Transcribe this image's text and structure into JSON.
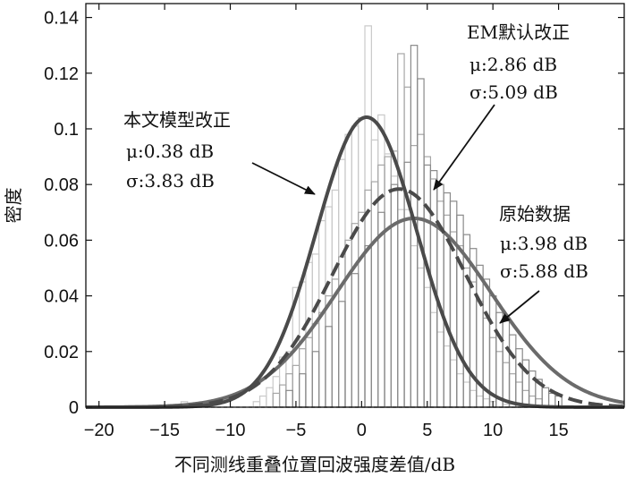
{
  "chart_data": {
    "type": "bar",
    "xlabel": "不同测线重叠位置回波强度差值/dB",
    "ylabel": "密度",
    "xlim": [
      -21,
      20
    ],
    "ylim": [
      0,
      0.145
    ],
    "xticks": [
      -20,
      -15,
      -10,
      -5,
      0,
      5,
      10,
      15
    ],
    "xtick_labels": [
      "−20",
      "−15",
      "−10",
      "−5",
      "0",
      "5",
      "10",
      "15"
    ],
    "yticks": [
      0,
      0.02,
      0.04,
      0.06,
      0.08,
      0.1,
      0.12,
      0.14
    ],
    "ytick_labels": [
      "0",
      "0.02",
      "0.04",
      "0.06",
      "0.08",
      "0.1",
      "0.12",
      "0.14"
    ],
    "grid": false,
    "series": [
      {
        "name": "原始数据",
        "kind": "normal_curve",
        "mu": 3.98,
        "sigma": 5.88,
        "color": "#6b6b6b",
        "dash": false
      },
      {
        "name": "EM默认改正",
        "kind": "normal_curve",
        "mu": 2.86,
        "sigma": 5.09,
        "color": "#4a4a4a",
        "dash": true
      },
      {
        "name": "本文模型改正",
        "kind": "normal_curve",
        "mu": 0.38,
        "sigma": 3.83,
        "color": "#4a4a4a",
        "dash": false
      }
    ],
    "histograms": [
      {
        "name": "本文模型改正-histogram",
        "color": "#c9c9c9",
        "bin_width": 0.5,
        "bins": [
          {
            "x": -13.5,
            "density": 0.002
          },
          {
            "x": -12.0,
            "density": 0.001
          },
          {
            "x": -8.0,
            "density": 0.002
          },
          {
            "x": -7.5,
            "density": 0.004
          },
          {
            "x": -7.0,
            "density": 0.007
          },
          {
            "x": -6.5,
            "density": 0.011
          },
          {
            "x": -6.0,
            "density": 0.018
          },
          {
            "x": -5.5,
            "density": 0.02
          },
          {
            "x": -5.0,
            "density": 0.043
          },
          {
            "x": -4.5,
            "density": 0.045
          },
          {
            "x": -4.0,
            "density": 0.052
          },
          {
            "x": -3.5,
            "density": 0.055
          },
          {
            "x": -3.0,
            "density": 0.067
          },
          {
            "x": -2.5,
            "density": 0.072
          },
          {
            "x": -2.0,
            "density": 0.078
          },
          {
            "x": -1.5,
            "density": 0.089
          },
          {
            "x": -1.0,
            "density": 0.098
          },
          {
            "x": -0.5,
            "density": 0.101
          },
          {
            "x": 0.0,
            "density": 0.104
          },
          {
            "x": 0.5,
            "density": 0.137
          },
          {
            "x": 1.0,
            "density": 0.096
          },
          {
            "x": 1.5,
            "density": 0.105
          },
          {
            "x": 2.0,
            "density": 0.091
          },
          {
            "x": 2.5,
            "density": 0.083
          },
          {
            "x": 3.0,
            "density": 0.071
          },
          {
            "x": 3.5,
            "density": 0.071
          },
          {
            "x": 4.0,
            "density": 0.058
          },
          {
            "x": 4.5,
            "density": 0.05
          },
          {
            "x": 5.0,
            "density": 0.043
          },
          {
            "x": 5.5,
            "density": 0.034
          },
          {
            "x": 6.0,
            "density": 0.027
          },
          {
            "x": 6.5,
            "density": 0.022
          },
          {
            "x": 7.0,
            "density": 0.017
          },
          {
            "x": 7.5,
            "density": 0.012
          },
          {
            "x": 8.0,
            "density": 0.009
          },
          {
            "x": 8.5,
            "density": 0.006
          },
          {
            "x": 9.0,
            "density": 0.004
          },
          {
            "x": 9.5,
            "density": 0.003
          },
          {
            "x": 10.0,
            "density": 0.002
          },
          {
            "x": 11.0,
            "density": 0.001
          }
        ]
      },
      {
        "name": "EM默认改正-histogram",
        "color": "#a6a6a6",
        "bin_width": 0.5,
        "bins": [
          {
            "x": -6.5,
            "density": 0.005
          },
          {
            "x": -6.0,
            "density": 0.008
          },
          {
            "x": -5.5,
            "density": 0.012
          },
          {
            "x": -5.0,
            "density": 0.015
          },
          {
            "x": -4.5,
            "density": 0.021
          },
          {
            "x": -4.0,
            "density": 0.025
          },
          {
            "x": -3.5,
            "density": 0.03
          },
          {
            "x": -3.0,
            "density": 0.034
          },
          {
            "x": -2.5,
            "density": 0.04
          },
          {
            "x": -2.0,
            "density": 0.046
          },
          {
            "x": -1.5,
            "density": 0.054
          },
          {
            "x": -1.0,
            "density": 0.06
          },
          {
            "x": -0.5,
            "density": 0.066
          },
          {
            "x": 0.0,
            "density": 0.07
          },
          {
            "x": 0.5,
            "density": 0.078
          },
          {
            "x": 1.0,
            "density": 0.081
          },
          {
            "x": 1.5,
            "density": 0.087
          },
          {
            "x": 2.0,
            "density": 0.09
          },
          {
            "x": 2.5,
            "density": 0.092
          },
          {
            "x": 3.0,
            "density": 0.127
          },
          {
            "x": 3.5,
            "density": 0.115
          },
          {
            "x": 4.0,
            "density": 0.094
          },
          {
            "x": 4.5,
            "density": 0.098
          },
          {
            "x": 5.0,
            "density": 0.09
          },
          {
            "x": 5.5,
            "density": 0.082
          },
          {
            "x": 6.0,
            "density": 0.074
          },
          {
            "x": 6.5,
            "density": 0.069
          },
          {
            "x": 7.0,
            "density": 0.063
          },
          {
            "x": 7.5,
            "density": 0.058
          },
          {
            "x": 8.0,
            "density": 0.05
          },
          {
            "x": 8.5,
            "density": 0.045
          },
          {
            "x": 9.0,
            "density": 0.038
          },
          {
            "x": 9.5,
            "density": 0.032
          },
          {
            "x": 10.0,
            "density": 0.025
          },
          {
            "x": 10.5,
            "density": 0.02
          },
          {
            "x": 11.0,
            "density": 0.016
          },
          {
            "x": 11.5,
            "density": 0.012
          },
          {
            "x": 12.0,
            "density": 0.009
          },
          {
            "x": 12.5,
            "density": 0.006
          },
          {
            "x": 13.0,
            "density": 0.004
          },
          {
            "x": 13.5,
            "density": 0.003
          }
        ]
      },
      {
        "name": "原始数据-histogram",
        "color": "#8a8a8a",
        "bin_width": 0.5,
        "bins": [
          {
            "x": -5.5,
            "density": 0.006
          },
          {
            "x": -4.5,
            "density": 0.012
          },
          {
            "x": -3.5,
            "density": 0.02
          },
          {
            "x": -2.5,
            "density": 0.029
          },
          {
            "x": -1.5,
            "density": 0.038
          },
          {
            "x": -0.5,
            "density": 0.048
          },
          {
            "x": 0.5,
            "density": 0.058
          },
          {
            "x": 1.5,
            "density": 0.07
          },
          {
            "x": 2.5,
            "density": 0.08
          },
          {
            "x": 3.5,
            "density": 0.088
          },
          {
            "x": 4.0,
            "density": 0.13
          },
          {
            "x": 4.5,
            "density": 0.118
          },
          {
            "x": 5.0,
            "density": 0.087
          },
          {
            "x": 5.5,
            "density": 0.085
          },
          {
            "x": 6.0,
            "density": 0.08
          },
          {
            "x": 6.5,
            "density": 0.077
          },
          {
            "x": 7.0,
            "density": 0.074
          },
          {
            "x": 7.5,
            "density": 0.069
          },
          {
            "x": 8.0,
            "density": 0.062
          },
          {
            "x": 8.5,
            "density": 0.057
          },
          {
            "x": 9.0,
            "density": 0.051
          },
          {
            "x": 9.5,
            "density": 0.046
          },
          {
            "x": 10.0,
            "density": 0.04
          },
          {
            "x": 10.5,
            "density": 0.034
          },
          {
            "x": 11.0,
            "density": 0.031
          },
          {
            "x": 11.5,
            "density": 0.026
          },
          {
            "x": 12.0,
            "density": 0.021
          },
          {
            "x": 12.5,
            "density": 0.017
          },
          {
            "x": 13.0,
            "density": 0.013
          },
          {
            "x": 13.5,
            "density": 0.01
          },
          {
            "x": 14.0,
            "density": 0.007
          },
          {
            "x": 14.5,
            "density": 0.005
          },
          {
            "x": 15.0,
            "density": 0.004
          }
        ]
      }
    ],
    "annotations": [
      {
        "key": "model",
        "lines": [
          "本文模型改正",
          "μ:0.38 dB",
          "σ:3.83 dB"
        ],
        "arrow_to_series": "本文模型改正"
      },
      {
        "key": "em",
        "lines": [
          "EM默认改正",
          "μ:2.86 dB",
          "σ:5.09 dB"
        ],
        "arrow_to_series": "EM默认改正"
      },
      {
        "key": "raw",
        "lines": [
          "原始数据",
          "μ:3.98 dB",
          "σ:5.88 dB"
        ],
        "arrow_to_series": "原始数据"
      }
    ]
  }
}
